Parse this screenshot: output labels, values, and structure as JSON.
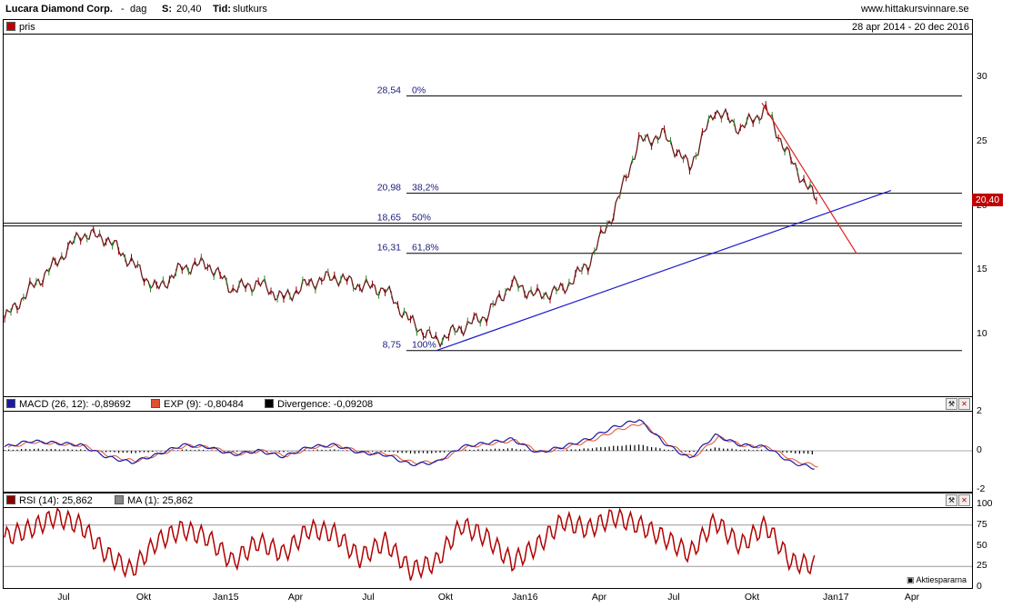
{
  "header": {
    "company": "Lucara Diamond Corp.",
    "sep": "-",
    "period": "dag",
    "s_label": "S:",
    "s_value": "20,40",
    "tid_label": "Tid:",
    "tid_value": "slutkurs",
    "site": "www.hittakursvinnare.se"
  },
  "price_panel": {
    "legend": "pris",
    "date_range": "28 apr 2014 - 20 dec 2016",
    "last_badge": "20,40",
    "yticks": [
      "30",
      "25",
      "20",
      "15",
      "10"
    ],
    "fib_levels": [
      {
        "value_label": "28,54",
        "pct": "0%",
        "y": 28.54
      },
      {
        "value_label": "20,98",
        "pct": "38,2%",
        "y": 20.98
      },
      {
        "value_label": "18,65",
        "pct": "50%",
        "y": 18.65
      },
      {
        "value_label": "16,31",
        "pct": "61,8%",
        "y": 16.31
      },
      {
        "value_label": "8,75",
        "pct": "100%",
        "y": 8.75
      }
    ]
  },
  "macd_panel": {
    "legend_macd": "MACD (26, 12): -0,89692",
    "legend_exp": "EXP (9): -0,80484",
    "legend_div": "Divergence: -0,09208",
    "yticks": [
      "2",
      "0",
      "-2"
    ]
  },
  "rsi_panel": {
    "legend_rsi": "RSI (14): 25,862",
    "legend_ma": "MA (1): 25,862",
    "yticks": [
      "100",
      "75",
      "50",
      "25",
      "0"
    ],
    "watermark": "Aktiespararna"
  },
  "xaxis": {
    "labels": [
      "Jul",
      "Okt",
      "Jan15",
      "Apr",
      "Jul",
      "Okt",
      "Jan16",
      "Apr",
      "Jul",
      "Okt",
      "Jan17",
      "Apr"
    ]
  },
  "chart_data": {
    "type": "line",
    "title": "Lucara Diamond Corp.",
    "date_range": "28 apr 2014 - 20 dec 2016",
    "ylim": [
      7,
      32
    ],
    "x": [
      "2014-04",
      "2014-05",
      "2014-06",
      "2014-07",
      "2014-08",
      "2014-09",
      "2014-10",
      "2014-11",
      "2014-12",
      "2015-01",
      "2015-02",
      "2015-03",
      "2015-04",
      "2015-05",
      "2015-06",
      "2015-07",
      "2015-08",
      "2015-09",
      "2015-10",
      "2015-11",
      "2015-12",
      "2016-01",
      "2016-02",
      "2016-03",
      "2016-04",
      "2016-05",
      "2016-06",
      "2016-07",
      "2016-08",
      "2016-09",
      "2016-10",
      "2016-11",
      "2016-12"
    ],
    "series": [
      {
        "name": "pris",
        "values": [
          11.2,
          13.5,
          15.5,
          17.8,
          17.5,
          15.6,
          13.5,
          15.2,
          15.5,
          13.5,
          14.0,
          12.8,
          14.0,
          14.5,
          13.8,
          13.5,
          11.0,
          9.5,
          10.5,
          11.5,
          14.0,
          13.0,
          13.5,
          15.5,
          19.5,
          25.0,
          25.5,
          23.0,
          27.5,
          26.0,
          27.5,
          23.5,
          20.4
        ]
      }
    ],
    "macd": [
      0.2,
      0.5,
      0.4,
      0.3,
      -0.3,
      -0.6,
      -0.2,
      0.3,
      0.2,
      -0.2,
      0.0,
      -0.3,
      0.2,
      0.3,
      -0.1,
      -0.2,
      -0.7,
      -0.6,
      0.2,
      0.4,
      0.6,
      -0.1,
      0.2,
      0.6,
      1.2,
      1.6,
      0.4,
      -0.4,
      0.8,
      0.3,
      0.2,
      -0.6,
      -0.9
    ],
    "rsi": [
      60,
      70,
      85,
      75,
      40,
      20,
      55,
      70,
      60,
      30,
      55,
      40,
      70,
      65,
      35,
      55,
      20,
      30,
      75,
      60,
      30,
      50,
      80,
      70,
      85,
      75,
      60,
      40,
      80,
      50,
      75,
      30,
      26
    ],
    "rsi_levels": [
      25,
      75
    ],
    "legend_placement": "top-left"
  }
}
